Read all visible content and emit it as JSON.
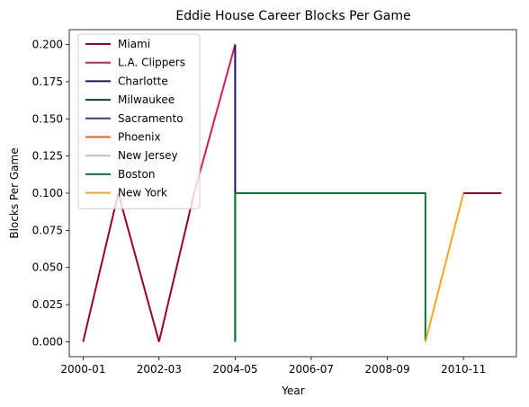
{
  "chart_data": {
    "type": "line",
    "title": "Eddie House Career Blocks Per Game",
    "xlabel": "Year",
    "ylabel": "Blocks Per Game",
    "xlim": [
      "1999-08-10",
      "2012-05-05"
    ],
    "ylim": [
      -0.01,
      0.21
    ],
    "xticks": [
      "2000-01",
      "2002-03",
      "2004-05",
      "2006-07",
      "2008-09",
      "2010-11"
    ],
    "xtick_dates": [
      "2000-01-01",
      "2002-03-01",
      "2004-05-01",
      "2006-07-01",
      "2008-09-01",
      "2010-11-01"
    ],
    "yticks": [
      0.0,
      0.025,
      0.05,
      0.075,
      0.1,
      0.125,
      0.15,
      0.175,
      0.2
    ],
    "ytick_labels": [
      "0.000",
      "0.025",
      "0.050",
      "0.075",
      "0.100",
      "0.125",
      "0.150",
      "0.175",
      "0.200"
    ],
    "legend_position": "upper-left",
    "series": [
      {
        "name": "Miami",
        "color": "#98002E",
        "points": [
          [
            "2000-01-01",
            0.0
          ],
          [
            "2001-01-01",
            0.1
          ],
          [
            "2002-03-01",
            0.0
          ],
          [
            "2003-03-01",
            0.1
          ]
        ]
      },
      {
        "name": "L.A. Clippers",
        "color": "#D8195E",
        "points": [
          [
            "2003-03-01",
            0.1
          ],
          [
            "2004-05-01",
            0.2
          ]
        ]
      },
      {
        "name": "Charlotte",
        "color": "#1D1160",
        "points": [
          [
            "2004-05-01",
            0.2
          ],
          [
            "2004-05-01",
            0.1
          ]
        ]
      },
      {
        "name": "Milwaukee",
        "color": "#00471B",
        "points": [
          [
            "2004-05-01",
            0.1
          ],
          [
            "2004-05-01",
            0.0
          ]
        ]
      },
      {
        "name": "Sacramento",
        "color": "#5A2D81",
        "points": [
          [
            "2004-05-01",
            0.1
          ],
          [
            "2005-06-01",
            0.1
          ]
        ]
      },
      {
        "name": "Phoenix",
        "color": "#E56020",
        "points": [
          [
            "2005-06-01",
            0.1
          ],
          [
            "2006-07-01",
            0.1
          ]
        ]
      },
      {
        "name": "New Jersey",
        "color": "#C0C0C0",
        "points": [
          [
            "2006-07-01",
            0.1
          ],
          [
            "2007-08-01",
            0.1
          ]
        ]
      },
      {
        "name": "Boston",
        "color": "#007A33",
        "points": [
          [
            "2004-05-01",
            0.1
          ],
          [
            "2004-05-01",
            0.0
          ],
          [
            "2004-05-01",
            0.1
          ],
          [
            "2007-08-01",
            0.1
          ],
          [
            "2009-10-01",
            0.1
          ],
          [
            "2009-10-01",
            0.0
          ]
        ]
      },
      {
        "name": "New York",
        "color": "#F5A623",
        "points": [
          [
            "2009-10-01",
            0.0
          ],
          [
            "2010-11-01",
            0.1
          ]
        ]
      },
      {
        "name": "Miami",
        "color": "#98002E",
        "show_in_legend": false,
        "points": [
          [
            "2010-11-01",
            0.1
          ],
          [
            "2011-12-01",
            0.1
          ]
        ]
      }
    ]
  }
}
